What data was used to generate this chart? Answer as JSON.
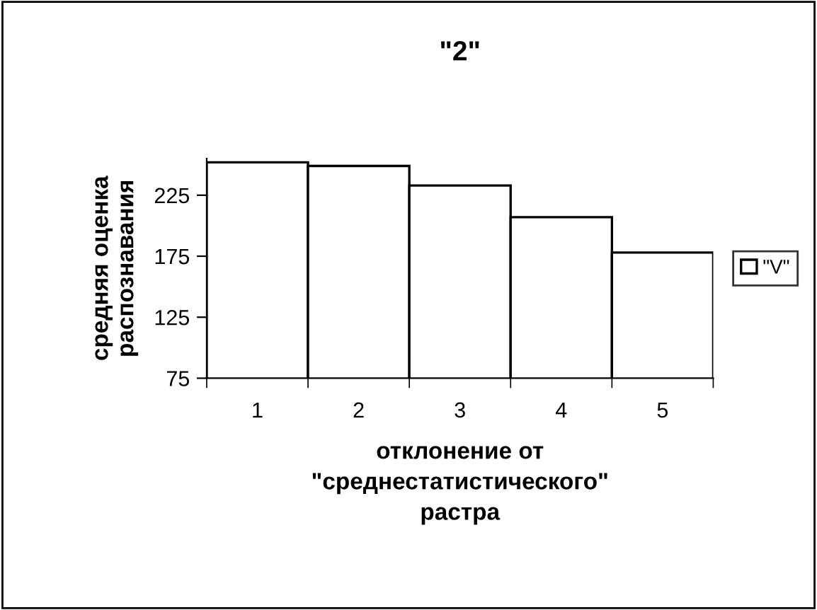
{
  "chart_data": {
    "type": "bar",
    "title": "\"2\"",
    "xlabel": "отклонение от\n\"среднестатистического\"\nрастра",
    "ylabel": "средняя оценка\nраспознавания",
    "categories": [
      "1",
      "2",
      "3",
      "4",
      "5"
    ],
    "series": [
      {
        "name": "\"V\"",
        "color": "#ffffff",
        "values": [
          252,
          249,
          233,
          207,
          178
        ]
      }
    ],
    "ylim": [
      75,
      255
    ],
    "yticks": [
      75,
      125,
      175,
      225
    ],
    "grid": false,
    "legend": "right"
  }
}
